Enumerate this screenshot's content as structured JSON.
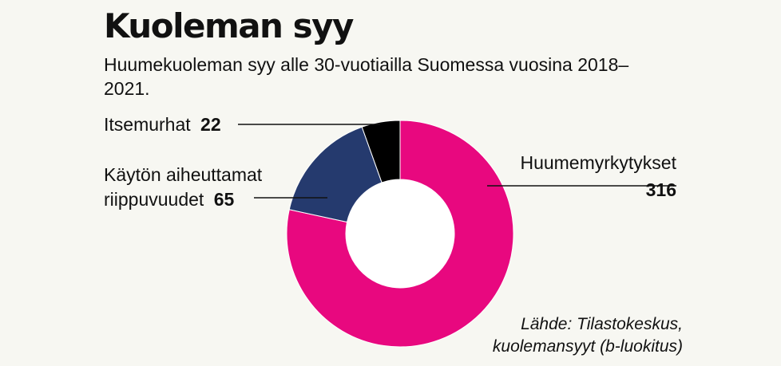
{
  "chart_data": {
    "type": "pie",
    "title": "Kuoleman syy",
    "subtitle": "Huumekuoleman syy alle 30-vuotiailla Suomessa vuosina 2018–2021.",
    "slices": [
      {
        "label": "Huumemyrkytykset",
        "value": 316,
        "color": "#e8087f"
      },
      {
        "label": "Käytön aiheuttamat riippuvuudet",
        "value": 65,
        "color": "#253a6e"
      },
      {
        "label": "Itsemurhat",
        "value": 22,
        "color": "#000000"
      }
    ],
    "labels": {
      "poisoning": {
        "line1": "Huumemyrkytykset",
        "value": "316"
      },
      "dependency": {
        "line1": "Käytön aiheuttamat",
        "line2": "riippuvuudet",
        "value": "65"
      },
      "suicide": {
        "line1": "Itsemurhat",
        "value": "22"
      }
    },
    "source": {
      "line1": "Lähde: Tilastokeskus,",
      "line2": "kuolemansyyt (b-luokitus)"
    }
  }
}
